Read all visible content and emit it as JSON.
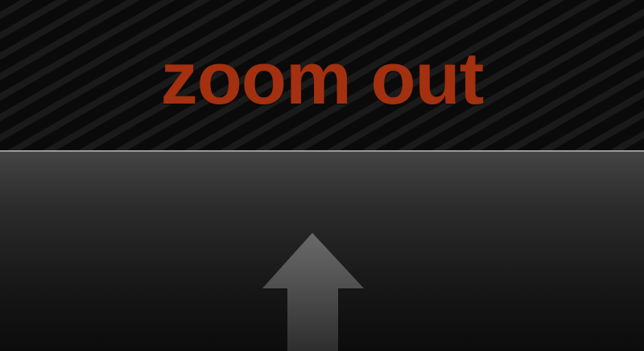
{
  "banner": {
    "title": "zoom out",
    "title_color": "#a3300f"
  },
  "panel": {
    "arrow_icon": "arrow-up-icon"
  }
}
